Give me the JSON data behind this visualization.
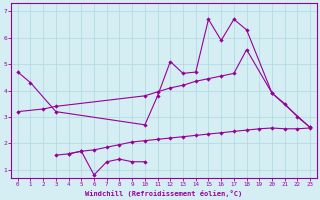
{
  "xlabel": "Windchill (Refroidissement éolien,°C)",
  "xlim": [
    -0.5,
    23.5
  ],
  "ylim": [
    0.7,
    7.3
  ],
  "xticks": [
    0,
    1,
    2,
    3,
    4,
    5,
    6,
    7,
    8,
    9,
    10,
    11,
    12,
    13,
    14,
    15,
    16,
    17,
    18,
    19,
    20,
    21,
    22,
    23
  ],
  "yticks": [
    1,
    2,
    3,
    4,
    5,
    6,
    7
  ],
  "bg_color": "#d4eef4",
  "grid_color": "#b0d8e0",
  "line_color": "#990099",
  "line1_x": [
    0,
    1,
    3,
    10,
    11,
    12,
    13,
    14,
    15,
    16,
    17,
    18,
    20,
    23
  ],
  "line1_y": [
    4.7,
    4.3,
    3.2,
    2.7,
    3.8,
    5.1,
    4.65,
    4.7,
    6.7,
    5.9,
    6.7,
    6.3,
    3.9,
    2.6
  ],
  "line2_x": [
    0,
    2,
    3,
    10,
    11,
    12,
    13,
    14,
    15,
    16,
    17,
    18,
    20,
    21,
    22,
    23
  ],
  "line2_y": [
    3.2,
    3.3,
    3.4,
    3.8,
    3.95,
    4.1,
    4.2,
    4.35,
    4.45,
    4.55,
    4.65,
    5.55,
    3.9,
    3.5,
    3.0,
    2.6
  ],
  "line3_x": [
    4,
    5,
    6,
    7,
    8,
    9,
    10
  ],
  "line3_y": [
    1.6,
    1.7,
    0.8,
    1.3,
    1.4,
    1.3,
    1.3
  ],
  "line4_x": [
    3,
    4,
    5,
    6,
    7,
    8,
    9,
    10,
    11,
    12,
    13,
    14,
    15,
    16,
    17,
    18,
    19,
    20,
    21,
    22,
    23
  ],
  "line4_y": [
    1.55,
    1.6,
    1.7,
    1.75,
    1.85,
    1.95,
    2.05,
    2.1,
    2.15,
    2.2,
    2.25,
    2.3,
    2.35,
    2.4,
    2.45,
    2.5,
    2.55,
    2.58,
    2.55,
    2.55,
    2.58
  ]
}
